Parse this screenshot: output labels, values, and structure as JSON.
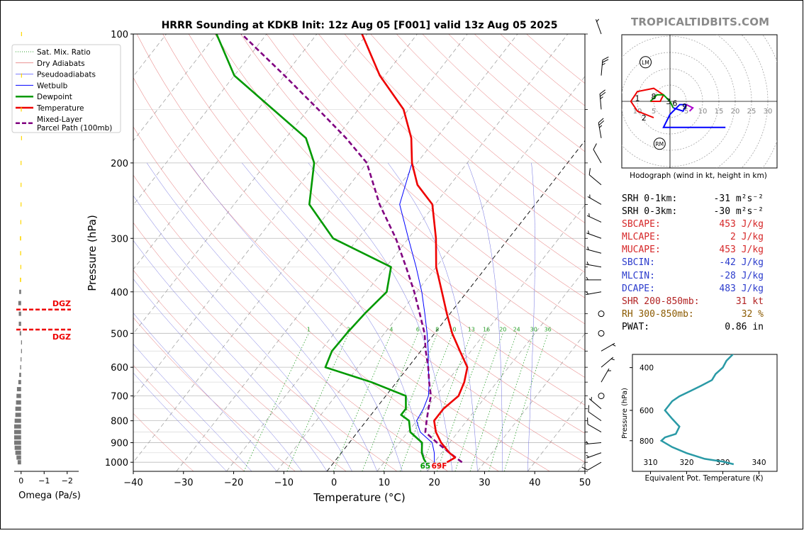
{
  "header": {
    "title": "HRRR Sounding at KDKB Init: 12z Aug 05 [F001] valid 13z Aug 05 2025",
    "watermark": "TROPICALTIDBITS.COM"
  },
  "chart_data": [
    {
      "type": "line",
      "subtype": "skew-t log-p",
      "title": "HRRR Sounding at KDKB Init: 12z Aug 05 [F001] valid 13z Aug 05 2025",
      "xlabel": "Temperature (°C)",
      "ylabel": "Pressure (hPa)",
      "xlim": [
        -40,
        50
      ],
      "ylim": [
        1050,
        100
      ],
      "yscale": "log",
      "xticks": [
        "−40",
        "−30",
        "−20",
        "−10",
        "0",
        "10",
        "20",
        "30",
        "40",
        "50"
      ],
      "yticks": [
        "100",
        "200",
        "300",
        "400",
        "500",
        "600",
        "700",
        "800",
        "900",
        "1000"
      ],
      "legend": {
        "placement": "top-left",
        "entries": [
          {
            "label": "Sat. Mix. Ratio",
            "color": "#2ca02c",
            "style": "dotted"
          },
          {
            "label": "Dry Adiabats",
            "color": "#d62728",
            "style": "solid-thin"
          },
          {
            "label": "Pseudoadiabats",
            "color": "#0000ff",
            "style": "solid-thin"
          },
          {
            "label": "Wetbulb",
            "color": "#0000ff",
            "style": "solid"
          },
          {
            "label": "Dewpoint",
            "color": "#009900",
            "style": "solid-thick"
          },
          {
            "label": "Temperature",
            "color": "#ee0000",
            "style": "solid-thick"
          },
          {
            "label": "Mixed-Layer\nParcel Path (100mb)",
            "color": "#800080",
            "style": "dashed"
          }
        ]
      },
      "mixing_ratio_labels": [
        "1",
        "2",
        "4",
        "6",
        "8",
        "10",
        "13",
        "16",
        "20",
        "24",
        "30",
        "36"
      ],
      "surface_dewpoint_label": "65",
      "surface_temperature_label": "69F",
      "series": [
        {
          "name": "Temperature",
          "color": "#ee0000",
          "points": [
            [
              22.5,
              1000
            ],
            [
              23.4,
              975
            ],
            [
              21.5,
              950
            ],
            [
              18.3,
              900
            ],
            [
              15.6,
              850
            ],
            [
              13.5,
              800
            ],
            [
              13.5,
              750
            ],
            [
              14.5,
              700
            ],
            [
              13.5,
              650
            ],
            [
              11.8,
              600
            ],
            [
              7.8,
              550
            ],
            [
              3.5,
              500
            ],
            [
              -0.6,
              450
            ],
            [
              -5.0,
              400
            ],
            [
              -10.0,
              350
            ],
            [
              -14.5,
              300
            ],
            [
              -20.5,
              250
            ],
            [
              -26.5,
              225
            ],
            [
              -31.0,
              200
            ],
            [
              -35.0,
              175
            ],
            [
              -41.0,
              150
            ],
            [
              -51.0,
              125
            ],
            [
              -61.0,
              100
            ]
          ]
        },
        {
          "name": "Dewpoint",
          "color": "#009900",
          "points": [
            [
              18.3,
              1000
            ],
            [
              17.5,
              985
            ],
            [
              16.0,
              950
            ],
            [
              14.5,
              900
            ],
            [
              10.5,
              850
            ],
            [
              8.5,
              800
            ],
            [
              6.0,
              775
            ],
            [
              6.0,
              750
            ],
            [
              4.0,
              700
            ],
            [
              -5.0,
              650
            ],
            [
              -16.5,
              600
            ],
            [
              -17.7,
              550
            ],
            [
              -17.5,
              500
            ],
            [
              -17.0,
              450
            ],
            [
              -16.0,
              400
            ],
            [
              -19.0,
              350
            ],
            [
              -35.0,
              300
            ],
            [
              -45.0,
              250
            ],
            [
              -50.5,
              200
            ],
            [
              -56.0,
              175
            ],
            [
              -67.0,
              150
            ],
            [
              -80.0,
              125
            ],
            [
              -90.0,
              100
            ]
          ]
        },
        {
          "name": "Wetbulb",
          "color": "#0000ff",
          "points": [
            [
              20.0,
              1000
            ],
            [
              18.5,
              950
            ],
            [
              16.5,
              900
            ],
            [
              12.5,
              850
            ],
            [
              10.0,
              800
            ],
            [
              9.5,
              750
            ],
            [
              8.5,
              700
            ],
            [
              6.5,
              650
            ],
            [
              4.0,
              600
            ],
            [
              1.5,
              550
            ],
            [
              -1.5,
              500
            ],
            [
              -5.0,
              450
            ],
            [
              -9.0,
              400
            ],
            [
              -14.0,
              350
            ],
            [
              -20.0,
              300
            ],
            [
              -27.0,
              250
            ],
            [
              -31.0,
              200
            ],
            [
              -35.0,
              175
            ],
            [
              -41.0,
              150
            ],
            [
              -51.0,
              125
            ],
            [
              -61.0,
              100
            ]
          ]
        },
        {
          "name": "Mixed-Layer\nParcel Path (100mb)",
          "color": "#800080",
          "points": [
            [
              25.5,
              1000
            ],
            [
              21.5,
              950
            ],
            [
              17.5,
              900
            ],
            [
              13.5,
              850
            ],
            [
              12.0,
              800
            ],
            [
              10.5,
              750
            ],
            [
              9.0,
              700
            ],
            [
              6.5,
              650
            ],
            [
              4.0,
              600
            ],
            [
              1.0,
              550
            ],
            [
              -2.0,
              500
            ],
            [
              -6.0,
              450
            ],
            [
              -10.5,
              400
            ],
            [
              -16.0,
              350
            ],
            [
              -22.5,
              300
            ],
            [
              -31.0,
              250
            ],
            [
              -40.0,
              200
            ],
            [
              -48.0,
              175
            ],
            [
              -58.0,
              150
            ],
            [
              -70.0,
              125
            ],
            [
              -85.0,
              100
            ]
          ]
        }
      ],
      "dgz_label": "DGZ",
      "dgz_bounds": [
        440,
        490
      ],
      "wind_barbs": [
        {
          "p": 1000,
          "spd": 10,
          "dir": 240
        },
        {
          "p": 950,
          "spd": 5,
          "dir": 250
        },
        {
          "p": 900,
          "spd": 5,
          "dir": 265
        },
        {
          "p": 850,
          "spd": 10,
          "dir": 300
        },
        {
          "p": 800,
          "spd": 10,
          "dir": 305
        },
        {
          "p": 750,
          "spd": 5,
          "dir": 310
        },
        {
          "p": 700,
          "spd": 0,
          "dir": 0
        },
        {
          "p": 650,
          "spd": 5,
          "dir": 30
        },
        {
          "p": 600,
          "spd": 5,
          "dir": 50
        },
        {
          "p": 550,
          "spd": 5,
          "dir": 60
        },
        {
          "p": 500,
          "spd": 0,
          "dir": 0
        },
        {
          "p": 450,
          "spd": 0,
          "dir": 0
        },
        {
          "p": 400,
          "spd": 5,
          "dir": 260
        },
        {
          "p": 375,
          "spd": 5,
          "dir": 270
        },
        {
          "p": 350,
          "spd": 5,
          "dir": 280
        },
        {
          "p": 325,
          "spd": 5,
          "dir": 285
        },
        {
          "p": 300,
          "spd": 5,
          "dir": 290
        },
        {
          "p": 275,
          "spd": 5,
          "dir": 295
        },
        {
          "p": 250,
          "spd": 5,
          "dir": 300
        },
        {
          "p": 225,
          "spd": 10,
          "dir": 310
        },
        {
          "p": 200,
          "spd": 10,
          "dir": 330
        },
        {
          "p": 175,
          "spd": 25,
          "dir": 350
        },
        {
          "p": 150,
          "spd": 25,
          "dir": 355
        },
        {
          "p": 125,
          "spd": 25,
          "dir": 5
        },
        {
          "p": 100,
          "spd": 5,
          "dir": 340
        }
      ]
    },
    {
      "type": "bar",
      "subtype": "omega profile",
      "xlabel": "Omega (Pa/s)",
      "xticks": [
        "0",
        "−1",
        "−2"
      ],
      "xlim": [
        0.3,
        -2.5
      ],
      "levels": [
        1000,
        975,
        950,
        925,
        900,
        875,
        850,
        825,
        800,
        775,
        750,
        725,
        700,
        675,
        650,
        625,
        600,
        575,
        550,
        525,
        500,
        475,
        450,
        425,
        400,
        375,
        350,
        325,
        300,
        275,
        250,
        225,
        200,
        175,
        150,
        125,
        100
      ],
      "values": [
        -0.15,
        -0.2,
        -0.25,
        -0.28,
        -0.3,
        -0.3,
        -0.3,
        -0.3,
        -0.28,
        -0.25,
        -0.25,
        -0.22,
        -0.2,
        -0.18,
        -0.12,
        -0.08,
        -0.04,
        -0.02,
        0.0,
        0.0,
        -0.06,
        -0.1,
        -0.1,
        -0.12,
        -0.08,
        -0.05,
        -0.03,
        -0.04,
        -0.05,
        -0.03,
        -0.02,
        -0.02,
        -0.02,
        0.0,
        -0.01,
        0.0,
        0.0
      ],
      "colors_by_index": {
        "gray": "#777777",
        "yellow": "#ffd700"
      },
      "yellow_from_level": 375
    },
    {
      "type": "line",
      "subtype": "hodograph",
      "caption": "Hodograph (wind in kt, height in km)",
      "ring_labels": [
        "10",
        "5",
        "5",
        "10",
        "15",
        "20",
        "25",
        "30"
      ],
      "markers": [
        "LM",
        "RM"
      ],
      "height_labels": [
        "1",
        "2",
        "3",
        "6",
        "8",
        "9"
      ],
      "segments": [
        {
          "color": "#ee0000",
          "points": [
            [
              -5,
              -5
            ],
            [
              -10,
              -3
            ],
            [
              -12,
              0
            ],
            [
              -10,
              3
            ],
            [
              -5,
              4
            ],
            [
              -2,
              2
            ],
            [
              -3,
              0
            ],
            [
              -6,
              0
            ]
          ]
        },
        {
          "color": "#009900",
          "points": [
            [
              -6,
              0
            ],
            [
              -4,
              2
            ],
            [
              -2,
              2
            ],
            [
              0,
              0
            ],
            [
              1,
              -2
            ]
          ]
        },
        {
          "color": "#0000ff",
          "points": [
            [
              1,
              -2
            ],
            [
              4,
              -3
            ],
            [
              5,
              -1
            ],
            [
              3,
              -1
            ],
            [
              0,
              -4
            ],
            [
              -2,
              -8
            ],
            [
              17,
              -8
            ]
          ]
        },
        {
          "color": "#aa00cc",
          "points": [
            [
              5,
              -1
            ],
            [
              7,
              -2
            ],
            [
              6,
              -3
            ]
          ]
        }
      ]
    },
    {
      "type": "line",
      "subtype": "theta-e profile",
      "xlabel": "Equivalent Pot. Temperature (K)",
      "ylabel": "Pressure (hPa)",
      "xticks": [
        "310",
        "320",
        "330",
        "340"
      ],
      "yticks": [
        "400",
        "600",
        "800"
      ],
      "xlim": [
        305,
        345
      ],
      "ylim": [
        1000,
        330
      ],
      "x": [
        333,
        330,
        325,
        320,
        316,
        313,
        314,
        317,
        318,
        316,
        314,
        316,
        318,
        321,
        324,
        327,
        328,
        330,
        331,
        333,
        335
      ],
      "y": [
        1000,
        975,
        950,
        900,
        850,
        800,
        775,
        750,
        700,
        650,
        600,
        550,
        525,
        500,
        475,
        450,
        425,
        400,
        375,
        350,
        330
      ],
      "color": "#2a9aa6"
    }
  ],
  "parameters": [
    {
      "label": "SRH 0-1km:",
      "value": "-31",
      "unit": "m²s⁻²",
      "color": "#000000"
    },
    {
      "label": "SRH 0-3km:",
      "value": "-30",
      "unit": "m²s⁻²",
      "color": "#000000"
    },
    {
      "label": "SBCAPE:",
      "value": "453 J/kg",
      "color": "#d62728"
    },
    {
      "label": "MLCAPE:",
      "value": "2 J/kg",
      "color": "#d62728"
    },
    {
      "label": "MUCAPE:",
      "value": "453 J/kg",
      "color": "#d62728"
    },
    {
      "label": "SBCIN:",
      "value": "-42 J/kg",
      "color": "#2b3bcc"
    },
    {
      "label": "MLCIN:",
      "value": "-28 J/kg",
      "color": "#2b3bcc"
    },
    {
      "label": "DCAPE:",
      "value": "483 J/kg",
      "color": "#2b3bcc"
    },
    {
      "label": "SHR 200-850mb:",
      "value": "31 kt",
      "color": "#b22222"
    },
    {
      "label": "RH 300-850mb:",
      "value": "32 %",
      "color": "#8b5a00"
    },
    {
      "label": "PWAT:",
      "value": "0.86 in",
      "color": "#000000"
    }
  ]
}
